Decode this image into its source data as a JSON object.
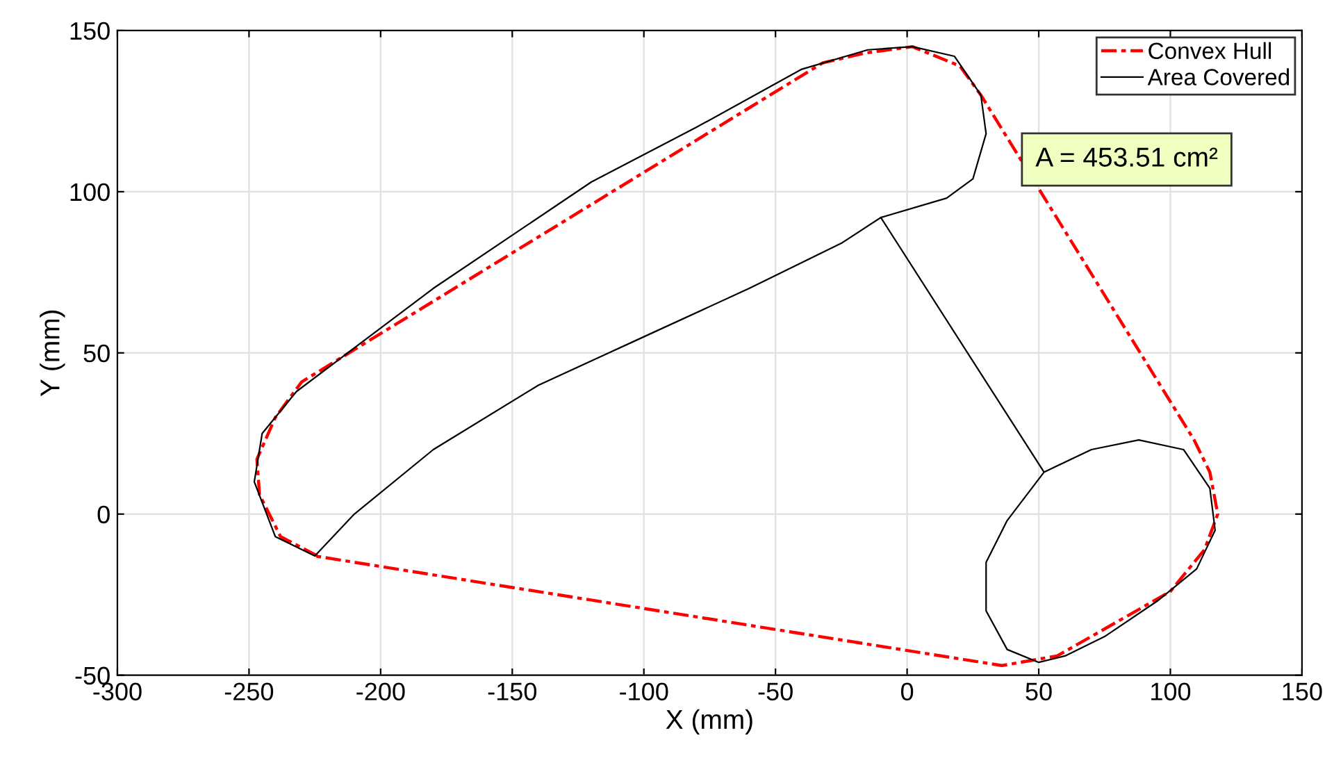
{
  "chart_data": {
    "type": "line",
    "xlabel": "X (mm)",
    "ylabel": "Y (mm)",
    "xlim": [
      -300,
      150
    ],
    "xticks": [
      -300,
      -250,
      -200,
      -150,
      -100,
      -50,
      0,
      50,
      100,
      150
    ],
    "ylim": [
      -50,
      150
    ],
    "yticks": [
      -50,
      0,
      50,
      100,
      150
    ],
    "grid": true,
    "legend": "top right",
    "annotations": [
      "A = 453.51 cm²"
    ],
    "series": [
      {
        "name": "Convex Hull",
        "color": "#ff0000",
        "line_style": "dashdot",
        "x": [
          -224,
          -238,
          -246,
          -247,
          -240,
          -230,
          -32,
          -16,
          2,
          20,
          28,
          109,
          115,
          118,
          113,
          100,
          57,
          36,
          -225
        ],
        "values": [
          -13,
          -7,
          6,
          17,
          30,
          41,
          140,
          143,
          145,
          139,
          130,
          23,
          13,
          0,
          -11,
          -24,
          -44,
          -47,
          -13
        ]
      },
      {
        "name": "Area Covered",
        "color": "#000000",
        "line_style": "solid",
        "x": [
          -10,
          -25,
          -60,
          -100,
          -140,
          -180,
          -210,
          -225,
          -240,
          -248,
          -245,
          -232,
          -180,
          -120,
          -80,
          -40,
          -15,
          2,
          18,
          28,
          30,
          25,
          15,
          -10,
          52,
          70,
          88,
          105,
          115,
          117,
          110,
          95,
          75,
          60,
          50,
          38,
          30,
          30,
          38,
          52
        ],
        "values": [
          92,
          84,
          70,
          55,
          40,
          20,
          0,
          -13,
          -7,
          10,
          25,
          38,
          70,
          103,
          120,
          138,
          144,
          145,
          142,
          130,
          118,
          104,
          98,
          92,
          13,
          20,
          23,
          20,
          8,
          -5,
          -17,
          -27,
          -38,
          -44,
          -46,
          -42,
          -30,
          -15,
          -2,
          13
        ]
      }
    ]
  }
}
